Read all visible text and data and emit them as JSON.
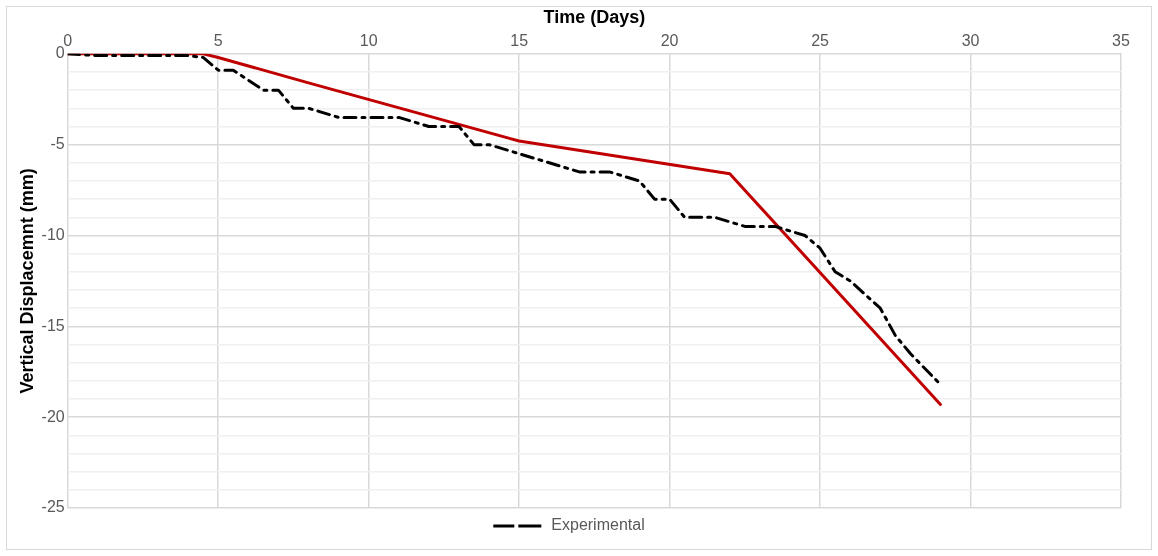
{
  "chart_data": {
    "type": "line",
    "xlabel": "Time (Days)",
    "ylabel": "Vertical Displacemnt (mm)",
    "xlim": [
      0,
      35
    ],
    "xticks": [
      0,
      5,
      10,
      15,
      20,
      25,
      30,
      35
    ],
    "ylim": [
      -25,
      0
    ],
    "yticks": [
      -25,
      {
        "value": -24,
        "label": null
      },
      {
        "value": -23,
        "label": null
      },
      {
        "value": -22,
        "label": null
      },
      {
        "value": -21,
        "label": null
      },
      -20,
      {
        "value": -19,
        "label": null
      },
      {
        "value": -18,
        "label": null
      },
      {
        "value": -17,
        "label": null
      },
      {
        "value": -16,
        "label": null
      },
      -15,
      {
        "value": -14,
        "label": null
      },
      {
        "value": -13,
        "label": null
      },
      {
        "value": -12,
        "label": null
      },
      {
        "value": -11,
        "label": null
      },
      -10,
      {
        "value": -9,
        "label": null
      },
      {
        "value": -8,
        "label": null
      },
      {
        "value": -7,
        "label": null
      },
      {
        "value": -6,
        "label": null
      },
      -5,
      {
        "value": -4,
        "label": null
      },
      {
        "value": -3,
        "label": null
      },
      {
        "value": -2,
        "label": null
      },
      {
        "value": -1,
        "label": null
      },
      0
    ],
    "grid": true,
    "legend": "bottom",
    "marker": "none",
    "series": [
      {
        "name": "Experimental",
        "color": "#000000",
        "line_style": "dashed",
        "x": [
          0,
          1,
          2,
          3,
          4,
          4.5,
          5,
          5.5,
          6.5,
          7,
          7.5,
          8,
          9,
          10,
          11,
          12,
          13,
          13.5,
          14,
          15,
          16,
          17,
          18,
          19,
          19.5,
          20,
          20.5,
          21.5,
          22.5,
          23.5,
          24.5,
          25,
          25.5,
          26,
          27,
          27.5,
          28,
          29
        ],
        "values": [
          0,
          -0.1,
          -0.1,
          -0.1,
          -0.1,
          -0.2,
          -0.9,
          -0.9,
          -2,
          -2,
          -3,
          -3,
          -3.5,
          -3.5,
          -3.5,
          -4,
          -4,
          -5,
          -5,
          -5.5,
          -6,
          -6.5,
          -6.5,
          -7,
          -8,
          -8,
          -9,
          -9,
          -9.5,
          -9.5,
          -10,
          -10.7,
          -12,
          -12.5,
          -14,
          -15.5,
          -16.5,
          -18.2
        ]
      },
      {
        "color": "#c00000",
        "line_style": "solid",
        "x": [
          0,
          4.5,
          5,
          8,
          15,
          22,
          29
        ],
        "values": [
          0,
          0,
          -0.2,
          -1.6,
          -4.8,
          -6.6,
          -19.3
        ]
      }
    ]
  }
}
